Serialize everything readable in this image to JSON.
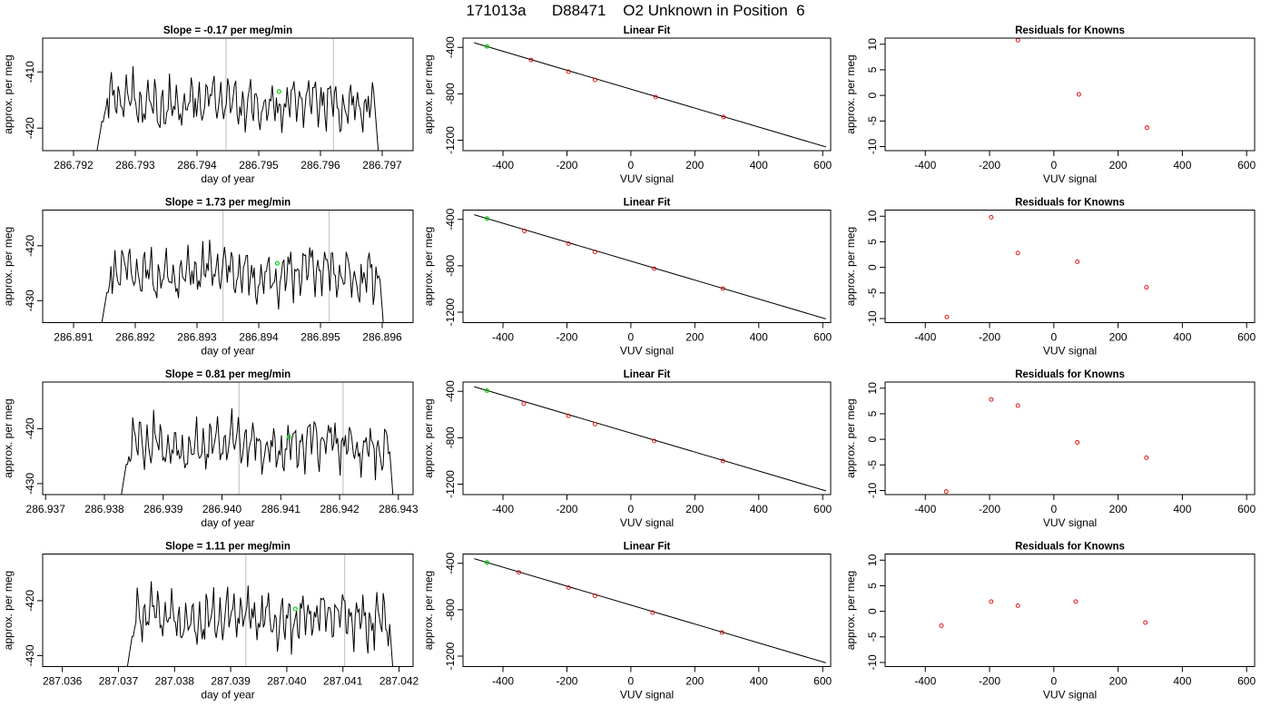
{
  "header": {
    "title": "171013a      D88471    O2 Unknown in Position  6"
  },
  "colors": {
    "trace": "#000000",
    "highlight": "#00cc00",
    "residual_marker": "#dd0000",
    "vline": "#c8c8c8"
  },
  "chart_data": [
    {
      "type": "line",
      "row": 0,
      "panel": "trace",
      "title": "Slope =  -0.17  per meg/min",
      "xlabel": "day of year",
      "ylabel": "approx. per meg",
      "xlim": [
        286.7915,
        286.7975
      ],
      "ylim": [
        -424,
        -404
      ],
      "xticks": [
        286.792,
        286.793,
        286.794,
        286.795,
        286.796,
        286.797
      ],
      "xtick_labels": [
        "286.792",
        "286.793",
        "286.794",
        "286.795",
        "286.796",
        "286.797"
      ],
      "yticks": [
        -420,
        -410
      ],
      "ytick_labels": [
        "-420",
        "-410"
      ],
      "vlines": [
        286.79447,
        286.79621
      ],
      "trace_start": 286.79235,
      "trace_end": 286.79695,
      "level": -414.5,
      "highlight": {
        "x": 286.79533,
        "y": -413.5
      }
    },
    {
      "type": "scatter",
      "row": 0,
      "panel": "fit",
      "title": "Linear Fit",
      "xlabel": "VUV signal",
      "ylabel": "approx. per meg",
      "xlim": [
        -525,
        625
      ],
      "ylim": [
        -1290,
        -320
      ],
      "xticks": [
        -400,
        -200,
        0,
        200,
        400,
        600
      ],
      "xtick_labels": [
        "-400",
        "-200",
        "0",
        "200",
        "400",
        "600"
      ],
      "yticks": [
        -1200,
        -800,
        -400
      ],
      "ytick_labels": [
        "-1200",
        "-800",
        "-400"
      ],
      "fit_line": {
        "x": [
          -490,
          610
        ],
        "y": [
          -360,
          -1258
        ]
      },
      "points": {
        "x": [
          -312,
          -195,
          -112,
          78,
          290
        ],
        "y": [
          -508,
          -610,
          -680,
          -828,
          -1000
        ]
      },
      "highlight": {
        "x": -450,
        "y": -392
      }
    },
    {
      "type": "scatter",
      "row": 0,
      "panel": "residuals",
      "title": "Residuals for Knowns",
      "xlabel": "VUV signal",
      "ylabel": "approx. per meg",
      "xlim": [
        -525,
        625
      ],
      "ylim": [
        -10.8,
        11.2
      ],
      "xticks": [
        -400,
        -200,
        0,
        200,
        400,
        600
      ],
      "xtick_labels": [
        "-400",
        "-200",
        "0",
        "200",
        "400",
        "600"
      ],
      "yticks": [
        -10,
        -5,
        0,
        5,
        10
      ],
      "ytick_labels": [
        "-10",
        "-5",
        "0",
        "5",
        "10"
      ],
      "points": {
        "x": [
          -112,
          78,
          290
        ],
        "y": [
          10.8,
          0.2,
          -6.3
        ]
      }
    },
    {
      "type": "line",
      "row": 1,
      "panel": "trace",
      "title": "Slope =  1.73  per meg/min",
      "xlabel": "day of year",
      "ylabel": "approx. per meg",
      "xlim": [
        286.8905,
        286.8965
      ],
      "ylim": [
        -434,
        -413.5
      ],
      "xticks": [
        286.891,
        286.892,
        286.893,
        286.894,
        286.895,
        286.896
      ],
      "xtick_labels": [
        "286.891",
        "286.892",
        "286.893",
        "286.894",
        "286.895",
        "286.896"
      ],
      "yticks": [
        -430,
        -420
      ],
      "ytick_labels": [
        "-430",
        "-420"
      ],
      "vlines": [
        286.89342,
        286.89514
      ],
      "trace_start": 286.89143,
      "trace_end": 286.89603,
      "level": -424.0,
      "highlight": {
        "x": 286.8943,
        "y": -423.2
      }
    },
    {
      "type": "scatter",
      "row": 1,
      "panel": "fit",
      "title": "Linear Fit",
      "xlabel": "VUV signal",
      "ylabel": "approx. per meg",
      "xlim": [
        -525,
        625
      ],
      "ylim": [
        -1290,
        -320
      ],
      "xticks": [
        -400,
        -200,
        0,
        200,
        400,
        600
      ],
      "xtick_labels": [
        "-400",
        "-200",
        "0",
        "200",
        "400",
        "600"
      ],
      "yticks": [
        -1200,
        -800,
        -400
      ],
      "ytick_labels": [
        "-1200",
        "-800",
        "-400"
      ],
      "fit_line": {
        "x": [
          -490,
          610
        ],
        "y": [
          -360,
          -1258
        ]
      },
      "points": {
        "x": [
          -333,
          -195,
          -112,
          73,
          288
        ],
        "y": [
          -500,
          -610,
          -680,
          -825,
          -997
        ]
      },
      "highlight": {
        "x": -450,
        "y": -393
      }
    },
    {
      "type": "scatter",
      "row": 1,
      "panel": "residuals",
      "title": "Residuals for Knowns",
      "xlabel": "VUV signal",
      "ylabel": "approx. per meg",
      "xlim": [
        -525,
        625
      ],
      "ylim": [
        -10.8,
        11.2
      ],
      "xticks": [
        -400,
        -200,
        0,
        200,
        400,
        600
      ],
      "xtick_labels": [
        "-400",
        "-200",
        "0",
        "200",
        "400",
        "600"
      ],
      "yticks": [
        -10,
        -5,
        0,
        5,
        10
      ],
      "ytick_labels": [
        "-10",
        "-5",
        "0",
        "5",
        "10"
      ],
      "points": {
        "x": [
          -333,
          -195,
          -112,
          73,
          288
        ],
        "y": [
          -9.7,
          9.8,
          2.8,
          1.1,
          -3.9
        ]
      }
    },
    {
      "type": "line",
      "row": 2,
      "panel": "trace",
      "title": "Slope =  0.81  per meg/min",
      "xlabel": "day of year",
      "ylabel": "approx. per meg",
      "xlim": [
        286.93695,
        286.94325
      ],
      "ylim": [
        -432,
        -411.5
      ],
      "xticks": [
        286.937,
        286.938,
        286.939,
        286.94,
        286.941,
        286.942,
        286.943
      ],
      "xtick_labels": [
        "286.937",
        "286.938",
        "286.939",
        "286.940",
        "286.941",
        "286.942",
        "286.943"
      ],
      "yticks": [
        -430,
        -420
      ],
      "ytick_labels": [
        "-430",
        "-420"
      ],
      "vlines": [
        286.94029,
        286.94206
      ],
      "trace_start": 286.93826,
      "trace_end": 286.94292,
      "level": -422.0,
      "highlight": {
        "x": 286.94114,
        "y": -421.5
      }
    },
    {
      "type": "scatter",
      "row": 2,
      "panel": "fit",
      "title": "Linear Fit",
      "xlabel": "VUV signal",
      "ylabel": "approx. per meg",
      "xlim": [
        -525,
        625
      ],
      "ylim": [
        -1290,
        -320
      ],
      "xticks": [
        -400,
        -200,
        0,
        200,
        400,
        600
      ],
      "xtick_labels": [
        "-400",
        "-200",
        "0",
        "200",
        "400",
        "600"
      ],
      "yticks": [
        -1200,
        -800,
        -400
      ],
      "ytick_labels": [
        "-1200",
        "-800",
        "-400"
      ],
      "fit_line": {
        "x": [
          -490,
          610
        ],
        "y": [
          -360,
          -1258
        ]
      },
      "points": {
        "x": [
          -335,
          -195,
          -112,
          73,
          288
        ],
        "y": [
          -505,
          -612,
          -682,
          -828,
          -1000
        ]
      },
      "highlight": {
        "x": -450,
        "y": -394
      }
    },
    {
      "type": "scatter",
      "row": 2,
      "panel": "residuals",
      "title": "Residuals for Knowns",
      "xlabel": "VUV signal",
      "ylabel": "approx. per meg",
      "xlim": [
        -525,
        625
      ],
      "ylim": [
        -10.8,
        11.2
      ],
      "xticks": [
        -400,
        -200,
        0,
        200,
        400,
        600
      ],
      "xtick_labels": [
        "-400",
        "-200",
        "0",
        "200",
        "400",
        "600"
      ],
      "yticks": [
        -10,
        -5,
        0,
        5,
        10
      ],
      "ytick_labels": [
        "-10",
        "-5",
        "0",
        "5",
        "10"
      ],
      "points": {
        "x": [
          -335,
          -195,
          -112,
          73,
          288
        ],
        "y": [
          -10.2,
          7.8,
          6.6,
          -0.6,
          -3.6
        ]
      }
    },
    {
      "type": "line",
      "row": 3,
      "panel": "trace",
      "title": "Slope =  1.11  per meg/min",
      "xlabel": "day of year",
      "ylabel": "approx. per meg",
      "xlim": [
        287.03565,
        287.04225
      ],
      "ylim": [
        -432,
        -411.5
      ],
      "xticks": [
        287.036,
        287.037,
        287.038,
        287.039,
        287.04,
        287.041,
        287.042
      ],
      "xtick_labels": [
        "287.036",
        "287.037",
        "287.038",
        "287.039",
        "287.040",
        "287.041",
        "287.042"
      ],
      "yticks": [
        -430,
        -420
      ],
      "ytick_labels": [
        "-430",
        "-420"
      ],
      "vlines": [
        287.03927,
        287.04103
      ],
      "trace_start": 287.03713,
      "trace_end": 287.0419,
      "level": -422.0,
      "highlight": {
        "x": 287.04015,
        "y": -421.5
      }
    },
    {
      "type": "scatter",
      "row": 3,
      "panel": "fit",
      "title": "Linear Fit",
      "xlabel": "VUV signal",
      "ylabel": "approx. per meg",
      "xlim": [
        -525,
        625
      ],
      "ylim": [
        -1290,
        -320
      ],
      "xticks": [
        -400,
        -200,
        0,
        200,
        400,
        600
      ],
      "xtick_labels": [
        "-400",
        "-200",
        "0",
        "200",
        "400",
        "600"
      ],
      "yticks": [
        -1200,
        -800,
        -400
      ],
      "ytick_labels": [
        "-1200",
        "-800",
        "-400"
      ],
      "fit_line": {
        "x": [
          -490,
          610
        ],
        "y": [
          -360,
          -1258
        ]
      },
      "points": {
        "x": [
          -350,
          -195,
          -112,
          68,
          285
        ],
        "y": [
          -478,
          -610,
          -680,
          -825,
          -996
        ]
      },
      "highlight": {
        "x": -450,
        "y": -393
      }
    },
    {
      "type": "scatter",
      "row": 3,
      "panel": "residuals",
      "title": "Residuals for Knowns",
      "xlabel": "VUV signal",
      "ylabel": "approx. per meg",
      "xlim": [
        -525,
        625
      ],
      "ylim": [
        -10.8,
        11.2
      ],
      "xticks": [
        -400,
        -200,
        0,
        200,
        400,
        600
      ],
      "xtick_labels": [
        "-400",
        "-200",
        "0",
        "200",
        "400",
        "600"
      ],
      "yticks": [
        -10,
        -5,
        0,
        5,
        10
      ],
      "ytick_labels": [
        "-10",
        "-5",
        "0",
        "5",
        "10"
      ],
      "points": {
        "x": [
          -350,
          -195,
          -112,
          68,
          285
        ],
        "y": [
          -2.8,
          1.9,
          1.1,
          1.9,
          -2.2
        ]
      }
    }
  ]
}
